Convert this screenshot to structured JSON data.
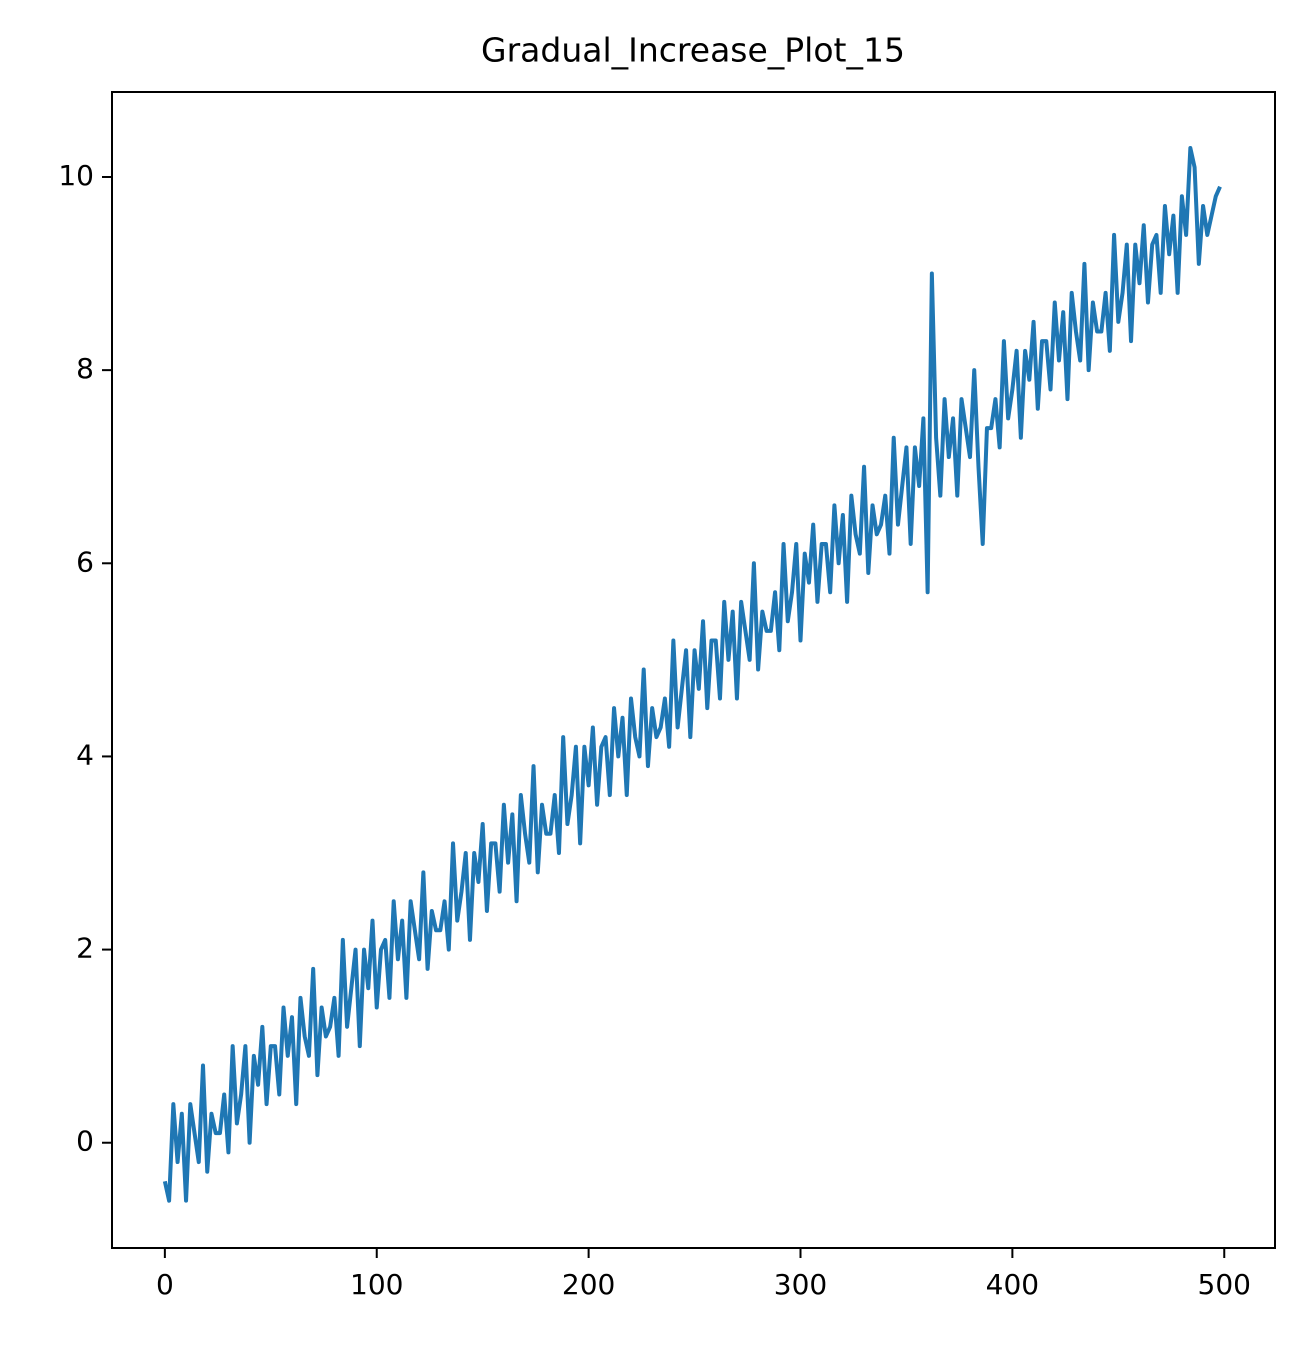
{
  "chart_data": {
    "type": "line",
    "title": "Gradual_Increase_Plot_15",
    "x": [
      0,
      2,
      4,
      6,
      8,
      10,
      12,
      14,
      16,
      18,
      20,
      22,
      24,
      26,
      28,
      30,
      32,
      34,
      36,
      38,
      40,
      42,
      44,
      46,
      48,
      50,
      52,
      54,
      56,
      58,
      60,
      62,
      64,
      66,
      68,
      70,
      72,
      74,
      76,
      78,
      80,
      82,
      84,
      86,
      88,
      90,
      92,
      94,
      96,
      98,
      100,
      102,
      104,
      106,
      108,
      110,
      112,
      114,
      116,
      118,
      120,
      122,
      124,
      126,
      128,
      130,
      132,
      134,
      136,
      138,
      140,
      142,
      144,
      146,
      148,
      150,
      152,
      154,
      156,
      158,
      160,
      162,
      164,
      166,
      168,
      170,
      172,
      174,
      176,
      178,
      180,
      182,
      184,
      186,
      188,
      190,
      192,
      194,
      196,
      198,
      200,
      202,
      204,
      206,
      208,
      210,
      212,
      214,
      216,
      218,
      220,
      222,
      224,
      226,
      228,
      230,
      232,
      234,
      236,
      238,
      240,
      242,
      244,
      246,
      248,
      250,
      252,
      254,
      256,
      258,
      260,
      262,
      264,
      266,
      268,
      270,
      272,
      274,
      276,
      278,
      280,
      282,
      284,
      286,
      288,
      290,
      292,
      294,
      296,
      298,
      300,
      302,
      304,
      306,
      308,
      310,
      312,
      314,
      316,
      318,
      320,
      322,
      324,
      326,
      328,
      330,
      332,
      334,
      336,
      338,
      340,
      342,
      344,
      346,
      348,
      350,
      352,
      354,
      356,
      358,
      360,
      362,
      364,
      366,
      368,
      370,
      372,
      374,
      376,
      378,
      380,
      382,
      384,
      386,
      388,
      390,
      392,
      394,
      396,
      398,
      400,
      402,
      404,
      406,
      408,
      410,
      412,
      414,
      416,
      418,
      420,
      422,
      424,
      426,
      428,
      430,
      432,
      434,
      436,
      438,
      440,
      442,
      444,
      446,
      448,
      450,
      452,
      454,
      456,
      458,
      460,
      462,
      464,
      466,
      468,
      470,
      472,
      474,
      476,
      478,
      480,
      482,
      484,
      486,
      488,
      490,
      492,
      494,
      496,
      498
    ],
    "series": [
      {
        "color": "#1f77b4",
        "values": [
          -0.4,
          -0.6,
          0.4,
          -0.2,
          0.3,
          -0.6,
          0.4,
          0.1,
          -0.2,
          0.8,
          -0.3,
          0.3,
          0.1,
          0.1,
          0.5,
          -0.1,
          1.0,
          0.2,
          0.5,
          1.0,
          0.0,
          0.9,
          0.6,
          1.2,
          0.4,
          1.0,
          1.0,
          0.5,
          1.4,
          0.9,
          1.3,
          0.4,
          1.5,
          1.1,
          0.9,
          1.8,
          0.7,
          1.4,
          1.1,
          1.2,
          1.5,
          0.9,
          2.1,
          1.2,
          1.6,
          2.0,
          1.0,
          2.0,
          1.6,
          2.3,
          1.4,
          2.0,
          2.1,
          1.5,
          2.5,
          1.9,
          2.3,
          1.5,
          2.5,
          2.2,
          1.9,
          2.8,
          1.8,
          2.4,
          2.2,
          2.2,
          2.5,
          2.0,
          3.1,
          2.3,
          2.6,
          3.0,
          2.1,
          3.0,
          2.7,
          3.3,
          2.4,
          3.1,
          3.1,
          2.6,
          3.5,
          2.9,
          3.4,
          2.5,
          3.6,
          3.2,
          2.9,
          3.9,
          2.8,
          3.5,
          3.2,
          3.2,
          3.6,
          3.0,
          4.2,
          3.3,
          3.6,
          4.1,
          3.1,
          4.1,
          3.7,
          4.3,
          3.5,
          4.1,
          4.2,
          3.6,
          4.5,
          4.0,
          4.4,
          3.6,
          4.6,
          4.2,
          4.0,
          4.9,
          3.9,
          4.5,
          4.2,
          4.3,
          4.6,
          4.1,
          5.2,
          4.3,
          4.7,
          5.1,
          4.2,
          5.1,
          4.7,
          5.4,
          4.5,
          5.2,
          5.2,
          4.6,
          5.6,
          5.0,
          5.5,
          4.6,
          5.6,
          5.3,
          5.0,
          6.0,
          4.9,
          5.5,
          5.3,
          5.3,
          5.7,
          5.1,
          6.2,
          5.4,
          5.7,
          6.2,
          5.2,
          6.1,
          5.8,
          6.4,
          5.6,
          6.2,
          6.2,
          5.7,
          6.6,
          6.0,
          6.5,
          5.6,
          6.7,
          6.3,
          6.1,
          7.0,
          5.9,
          6.6,
          6.3,
          6.4,
          6.7,
          6.1,
          7.3,
          6.4,
          6.8,
          7.2,
          6.2,
          7.2,
          6.8,
          7.5,
          5.7,
          9.0,
          7.3,
          6.7,
          7.7,
          7.1,
          7.5,
          6.7,
          7.7,
          7.4,
          7.1,
          8.0,
          7.0,
          6.2,
          7.4,
          7.4,
          7.7,
          7.2,
          8.3,
          7.5,
          7.8,
          8.2,
          7.3,
          8.2,
          7.9,
          8.5,
          7.6,
          8.3,
          8.3,
          7.8,
          8.7,
          8.1,
          8.6,
          7.7,
          8.8,
          8.4,
          8.1,
          9.1,
          8.0,
          8.7,
          8.4,
          8.4,
          8.8,
          8.2,
          9.4,
          8.5,
          8.8,
          9.3,
          8.3,
          9.3,
          8.9,
          9.5,
          8.7,
          9.3,
          9.4,
          8.8,
          9.7,
          9.2,
          9.6,
          8.8,
          9.8,
          9.4,
          10.3,
          10.1,
          9.1,
          9.7,
          9.4,
          9.6,
          9.8,
          9.9
        ]
      }
    ],
    "xlim": [
      -24.95,
      523.95
    ],
    "ylim": [
      -1.09,
      10.88
    ],
    "xticks": [
      0,
      100,
      200,
      300,
      400,
      500
    ],
    "yticks": [
      0,
      2,
      4,
      6,
      8,
      10
    ]
  }
}
